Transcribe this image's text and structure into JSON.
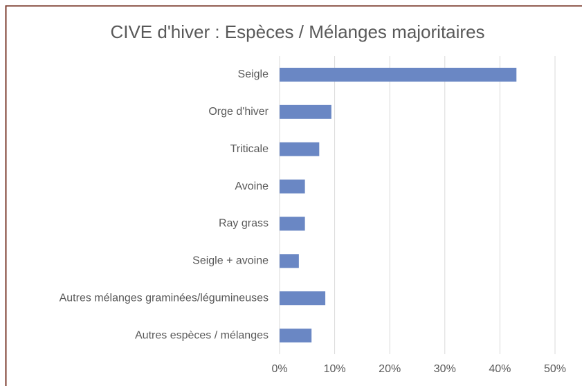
{
  "chart_data": {
    "type": "bar",
    "orientation": "horizontal",
    "title": "CIVE d'hiver : Espèces / Mélanges majoritaires",
    "categories": [
      "Seigle",
      "Orge d'hiver",
      "Triticale",
      "Avoine",
      "Ray grass",
      "Seigle + avoine",
      "Autres mélanges graminées/légumineuses",
      "Autres espèces / mélanges"
    ],
    "values": [
      43,
      9.4,
      7.2,
      4.6,
      4.6,
      3.5,
      8.3,
      5.8
    ],
    "color": "#6a87c4",
    "xlim": [
      0,
      50
    ],
    "xticks": [
      {
        "value": 0,
        "label": "0%"
      },
      {
        "value": 10,
        "label": "10%"
      },
      {
        "value": 20,
        "label": "20%"
      },
      {
        "value": 30,
        "label": "30%"
      },
      {
        "value": 40,
        "label": "40%"
      },
      {
        "value": 50,
        "label": "50%"
      }
    ],
    "grid": true
  }
}
